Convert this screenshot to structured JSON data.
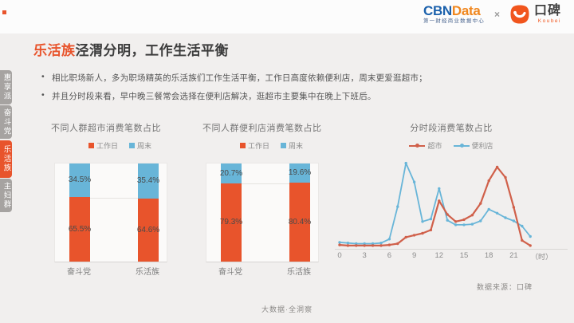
{
  "page": {
    "footer_center": "大数据·全洞察",
    "source_note": "数据来源：口碑"
  },
  "header": {
    "cbn": {
      "part1": "CBN",
      "part2": "Data",
      "tagline": "第一财经商业数据中心"
    },
    "separator": "×",
    "koubei": {
      "name": "口碑",
      "latin": "Koubei"
    }
  },
  "sidebar": {
    "items": [
      {
        "label": "惠享派",
        "active": false
      },
      {
        "label": "奋斗党",
        "active": false
      },
      {
        "label": "乐活族",
        "active": true
      },
      {
        "label": "主妇群",
        "active": false
      }
    ]
  },
  "title": {
    "highlight": "乐活族",
    "rest": "泾渭分明，工作生活平衡"
  },
  "bullets": [
    {
      "marker": "•",
      "text": "相比职场新人，多为职场精英的乐活族们工作生活平衡，工作日高度依赖便利店，周末更爱逛超市；"
    },
    {
      "marker": "•",
      "text": "并且分时段来看，早中晚三餐常会选择在便利店解决，逛超市主要集中在晚上下班后。"
    }
  ],
  "colors": {
    "accent_orange": "#e8542c",
    "bar_blue": "#68b5d8",
    "line_red": "#d0604a",
    "tab_gray": "#a6a3a1",
    "koubei_orange": "#f1551d"
  },
  "chart_data": [
    {
      "type": "bar",
      "stacked": true,
      "title": "不同人群超市消费笔数占比",
      "categories": [
        "奋斗党",
        "乐活族"
      ],
      "series": [
        {
          "name": "工作日",
          "color": "#e8542c",
          "values": [
            65.5,
            64.6
          ]
        },
        {
          "name": "周末",
          "color": "#68b5d8",
          "values": [
            34.5,
            35.4
          ]
        }
      ],
      "ylim": [
        0,
        100
      ],
      "value_format": "percent"
    },
    {
      "type": "bar",
      "stacked": true,
      "title": "不同人群便利店消费笔数占比",
      "categories": [
        "奋斗党",
        "乐活族"
      ],
      "series": [
        {
          "name": "工作日",
          "color": "#e8542c",
          "values": [
            79.3,
            80.4
          ]
        },
        {
          "name": "周末",
          "color": "#68b5d8",
          "values": [
            20.7,
            19.6
          ]
        }
      ],
      "ylim": [
        0,
        100
      ],
      "value_format": "percent"
    },
    {
      "type": "line",
      "title": "分时段消费笔数占比",
      "xunit": "（时）",
      "x": [
        0,
        1,
        2,
        3,
        4,
        5,
        6,
        7,
        8,
        9,
        10,
        11,
        12,
        13,
        14,
        15,
        16,
        17,
        18,
        19,
        20,
        21,
        22,
        23
      ],
      "xticks": [
        0,
        3,
        6,
        9,
        12,
        15,
        18,
        21
      ],
      "ylim": [
        0,
        15
      ],
      "series": [
        {
          "name": "超市",
          "color": "#d0604a",
          "values": [
            0.6,
            0.5,
            0.5,
            0.5,
            0.5,
            0.5,
            0.6,
            0.8,
            1.8,
            2.1,
            2.4,
            2.9,
            7.4,
            5.3,
            4.2,
            4.5,
            5.2,
            7.0,
            10.5,
            12.6,
            11.0,
            6.4,
            1.3,
            0.5
          ]
        },
        {
          "name": "便利店",
          "color": "#68b5d8",
          "values": [
            1.0,
            0.9,
            0.8,
            0.8,
            0.8,
            0.9,
            1.5,
            6.5,
            13.2,
            10.3,
            4.2,
            4.6,
            9.3,
            4.4,
            3.7,
            3.7,
            3.8,
            4.3,
            6.1,
            5.5,
            4.8,
            4.3,
            3.5,
            1.9
          ]
        }
      ]
    }
  ]
}
